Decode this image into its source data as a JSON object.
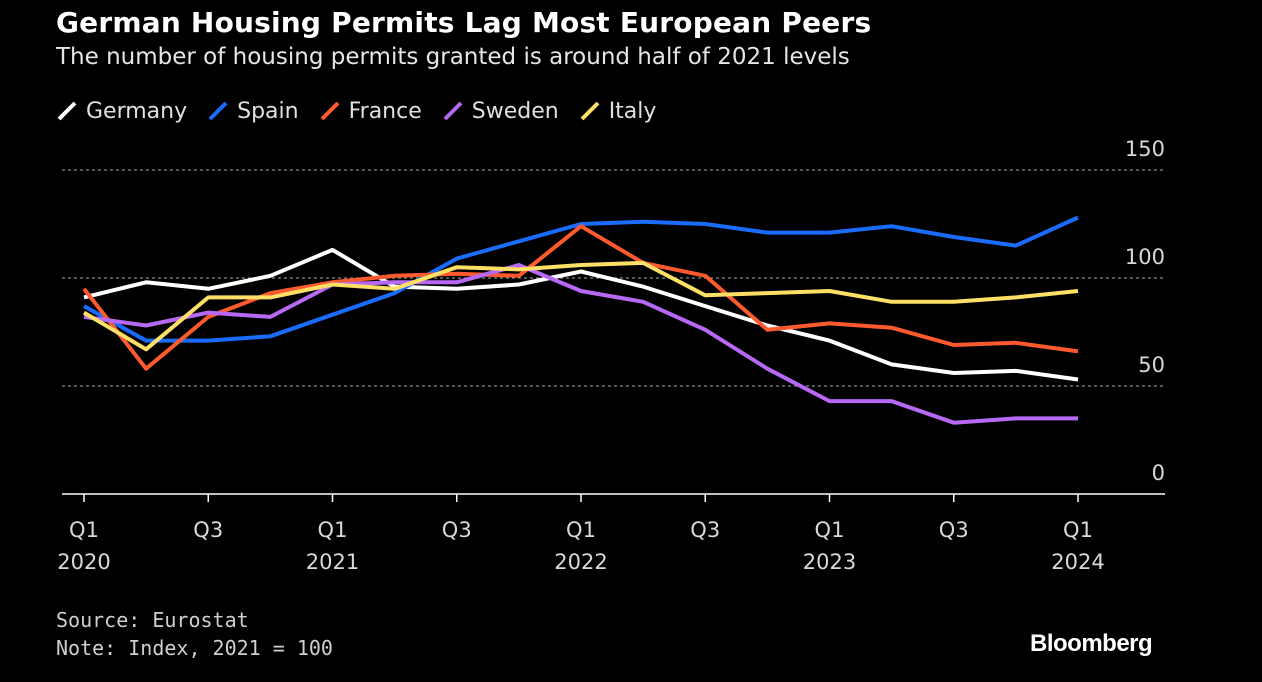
{
  "chart_data": {
    "type": "line",
    "title": "German Housing Permits Lag Most European Peers",
    "subtitle": "The number of housing permits granted is around half of 2021 levels",
    "x": [
      "Q1 2020",
      "Q2 2020",
      "Q3 2020",
      "Q4 2020",
      "Q1 2021",
      "Q2 2021",
      "Q3 2021",
      "Q4 2021",
      "Q1 2022",
      "Q2 2022",
      "Q3 2022",
      "Q4 2022",
      "Q1 2023",
      "Q2 2023",
      "Q3 2023",
      "Q4 2023",
      "Q1 2024"
    ],
    "x_ticks": [
      {
        "index": 0,
        "line1": "Q1",
        "line2": "2020"
      },
      {
        "index": 2,
        "line1": "Q3",
        "line2": ""
      },
      {
        "index": 4,
        "line1": "Q1",
        "line2": "2021"
      },
      {
        "index": 6,
        "line1": "Q3",
        "line2": ""
      },
      {
        "index": 8,
        "line1": "Q1",
        "line2": "2022"
      },
      {
        "index": 10,
        "line1": "Q3",
        "line2": ""
      },
      {
        "index": 12,
        "line1": "Q1",
        "line2": "2023"
      },
      {
        "index": 14,
        "line1": "Q3",
        "line2": ""
      },
      {
        "index": 16,
        "line1": "Q1",
        "line2": "2024"
      }
    ],
    "ylim": [
      0,
      150
    ],
    "y_ticks": [
      0,
      50,
      100,
      150
    ],
    "grid": true,
    "legend_position": "top-left",
    "series": [
      {
        "name": "Germany",
        "color": "#ffffff",
        "values": [
          91,
          98,
          95,
          101,
          113,
          96,
          95,
          97,
          103,
          96,
          87,
          78,
          71,
          60,
          56,
          57,
          53
        ]
      },
      {
        "name": "Spain",
        "color": "#1a6cff",
        "values": [
          87,
          71,
          71,
          73,
          83,
          93,
          109,
          117,
          125,
          126,
          125,
          121,
          121,
          124,
          119,
          115,
          128
        ]
      },
      {
        "name": "France",
        "color": "#ff5a2e",
        "values": [
          95,
          58,
          82,
          93,
          98,
          101,
          102,
          101,
          124,
          107,
          101,
          76,
          79,
          77,
          69,
          70,
          66
        ]
      },
      {
        "name": "Sweden",
        "color": "#b769f5",
        "values": [
          82,
          78,
          84,
          82,
          97,
          98,
          98,
          106,
          94,
          89,
          76,
          58,
          43,
          43,
          33,
          35,
          35
        ]
      },
      {
        "name": "Italy",
        "color": "#ffe066",
        "values": [
          84,
          67,
          91,
          91,
          97,
          95,
          105,
          104,
          106,
          107,
          92,
          93,
          94,
          89,
          89,
          91,
          94
        ]
      }
    ]
  },
  "footer": {
    "source": "Source: Eurostat",
    "note": "Note: Index, 2021 = 100"
  },
  "brand": "Bloomberg"
}
